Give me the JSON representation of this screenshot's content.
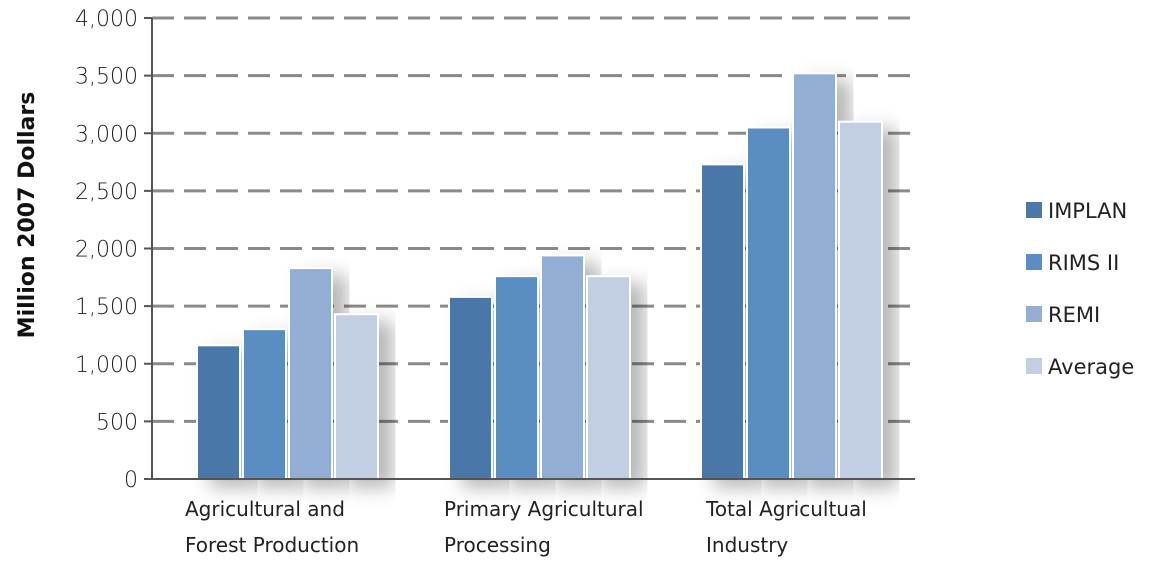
{
  "chart_data": {
    "type": "bar",
    "title": "",
    "xlabel": "",
    "ylabel": "Million 2007 Dollars",
    "ylim": [
      0,
      4000
    ],
    "yticks": [
      "0",
      "500",
      "1,000",
      "1,500",
      "2,000",
      "2,500",
      "3,000",
      "3,500",
      "4,000"
    ],
    "categories": [
      [
        "Agricultural and",
        "Forest Production"
      ],
      [
        "Primary Agricultural",
        "Processing"
      ],
      [
        "Total Agricultual",
        "Industry"
      ]
    ],
    "series": [
      {
        "name": "IMPLAN",
        "color": "#4a78a8",
        "values": [
          1160,
          1580,
          2730
        ]
      },
      {
        "name": "RIMS II",
        "color": "#5a8dc1",
        "values": [
          1300,
          1760,
          3050
        ]
      },
      {
        "name": "REMI",
        "color": "#93aed5",
        "values": [
          1830,
          1940,
          3520
        ]
      },
      {
        "name": "Average",
        "color": "#c2cfe3",
        "values": [
          1430,
          1760,
          3100
        ]
      }
    ],
    "grid": true,
    "legend": "right"
  }
}
